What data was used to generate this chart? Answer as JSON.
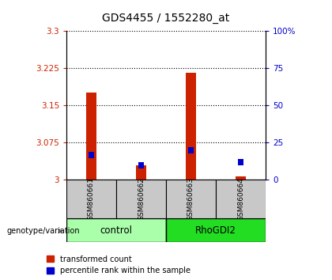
{
  "title": "GDS4455 / 1552280_at",
  "samples": [
    "GSM860661",
    "GSM860662",
    "GSM860663",
    "GSM860664"
  ],
  "red_values": [
    3.175,
    3.028,
    3.215,
    3.005
  ],
  "blue_pct": [
    15,
    8,
    18,
    10
  ],
  "ylim_left": [
    3.0,
    3.3
  ],
  "ylim_right": [
    0,
    100
  ],
  "yticks_left": [
    3.0,
    3.075,
    3.15,
    3.225,
    3.3
  ],
  "ytick_labels_left": [
    "3",
    "3.075",
    "3.15",
    "3.225",
    "3.3"
  ],
  "yticks_right": [
    0,
    25,
    50,
    75,
    100
  ],
  "ytick_labels_right": [
    "0",
    "25",
    "50",
    "75",
    "100%"
  ],
  "red_color": "#cc2200",
  "blue_color": "#0000cc",
  "bar_width": 0.22,
  "label_red": "transformed count",
  "label_blue": "percentile rank within the sample",
  "sample_bg_color": "#c8c8c8",
  "control_bg_color": "#aaffaa",
  "rhodgi2_bg_color": "#22dd22",
  "arrow_color": "#888888",
  "group_info": [
    {
      "start": 0,
      "end": 2,
      "label": "control",
      "color": "#aaffaa"
    },
    {
      "start": 2,
      "end": 4,
      "label": "RhoGDI2",
      "color": "#22dd22"
    }
  ]
}
